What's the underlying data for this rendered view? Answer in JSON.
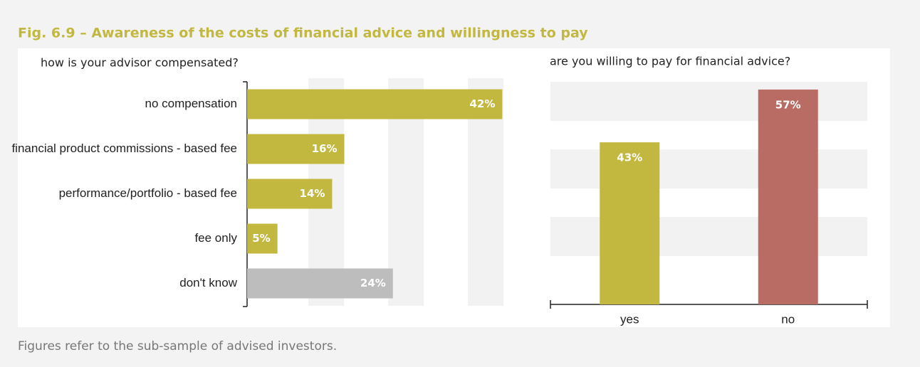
{
  "title": "Fig. 6.9 – Awareness of the costs of financial advice and willingness to pay",
  "note": "Figures refer to the sub-sample of advised investors.",
  "chart_data": [
    {
      "type": "hbar",
      "title": "how is your advisor compensated?",
      "categories": [
        "no compensation",
        "financial product commissions - based fee",
        "performance/portfolio - based fee",
        "fee only",
        "don't know"
      ],
      "values": [
        42,
        16,
        14,
        5,
        24
      ],
      "value_labels": [
        "42%",
        "16%",
        "14%",
        "5%",
        "24%"
      ],
      "colors": [
        "#c3b83f",
        "#c3b83f",
        "#c3b83f",
        "#c3b83f",
        "#bdbdbd"
      ],
      "xlim": [
        0,
        45
      ]
    },
    {
      "type": "bar",
      "title": "are you willing to pay for financial advice?",
      "categories": [
        "yes",
        "no"
      ],
      "values": [
        43,
        57
      ],
      "value_labels": [
        "43%",
        "57%"
      ],
      "colors": [
        "#c3b83f",
        "#b96c63"
      ],
      "ylim": [
        0,
        60
      ]
    }
  ]
}
